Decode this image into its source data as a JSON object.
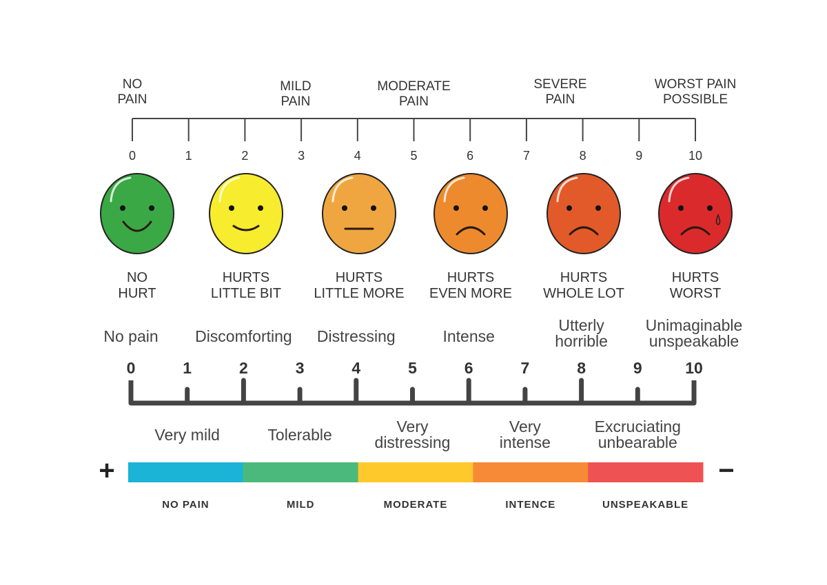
{
  "top_scale": {
    "categories": [
      {
        "value": 0,
        "label": [
          "NO",
          "PAIN"
        ]
      },
      {
        "value": 2.9,
        "label": [
          "MILD",
          "PAIN"
        ]
      },
      {
        "value": 5,
        "label": [
          "MODERATE",
          "PAIN"
        ]
      },
      {
        "value": 7.6,
        "label": [
          "SEVERE",
          "PAIN"
        ]
      },
      {
        "value": 10,
        "label": [
          "WORST PAIN",
          "POSSIBLE"
        ]
      }
    ],
    "ticks": [
      "0",
      "1",
      "2",
      "3",
      "4",
      "5",
      "6",
      "7",
      "8",
      "9",
      "10"
    ]
  },
  "faces": [
    {
      "value": 0,
      "color": "#3aa845",
      "mouth": "smile",
      "label": [
        "NO",
        "HURT"
      ]
    },
    {
      "value": 2,
      "color": "#f7ec2e",
      "mouth": "small-smile",
      "label": [
        "HURTS",
        "LITTLE BIT"
      ]
    },
    {
      "value": 4,
      "color": "#f0a640",
      "mouth": "flat",
      "label": [
        "HURTS",
        "LITTLE MORE"
      ]
    },
    {
      "value": 6,
      "color": "#ee8a2e",
      "mouth": "frown",
      "label": [
        "HURTS",
        "EVEN MORE"
      ]
    },
    {
      "value": 8,
      "color": "#e25a2a",
      "mouth": "frown",
      "label": [
        "HURTS",
        "WHOLE LOT"
      ]
    },
    {
      "value": 10,
      "color": "#da2a2c",
      "mouth": "frown-tear",
      "label": [
        "HURTS",
        "WORST"
      ]
    }
  ],
  "bottom_scale": {
    "upper_labels": [
      {
        "value": 0,
        "label": [
          "No pain"
        ]
      },
      {
        "value": 2,
        "label": [
          "Discomforting"
        ]
      },
      {
        "value": 4,
        "label": [
          "Distressing"
        ]
      },
      {
        "value": 6,
        "label": [
          "Intense"
        ]
      },
      {
        "value": 8,
        "label": [
          "Utterly",
          "horrible"
        ]
      },
      {
        "value": 10,
        "label": [
          "Unimaginable",
          "unspeakable"
        ]
      }
    ],
    "ticks": [
      "0",
      "1",
      "2",
      "3",
      "4",
      "5",
      "6",
      "7",
      "8",
      "9",
      "10"
    ],
    "lower_labels": [
      {
        "value": 1,
        "label": [
          "Very mild"
        ]
      },
      {
        "value": 3,
        "label": [
          "Tolerable"
        ]
      },
      {
        "value": 5,
        "label": [
          "Very",
          "distressing"
        ]
      },
      {
        "value": 7,
        "label": [
          "Very",
          "intense"
        ]
      },
      {
        "value": 9,
        "label": [
          "Excruciating",
          "unbearable"
        ]
      }
    ]
  },
  "color_bar": {
    "plus": "+",
    "minus": "−",
    "segments": [
      {
        "color": "#1bb3d6",
        "label": "NO PAIN"
      },
      {
        "color": "#4cb97c",
        "label": "MILD"
      },
      {
        "color": "#fdc92b",
        "label": "MODERATE"
      },
      {
        "color": "#f68a36",
        "label": "INTENCE"
      },
      {
        "color": "#ee5252",
        "label": "UNSPEAKABLE"
      }
    ]
  }
}
